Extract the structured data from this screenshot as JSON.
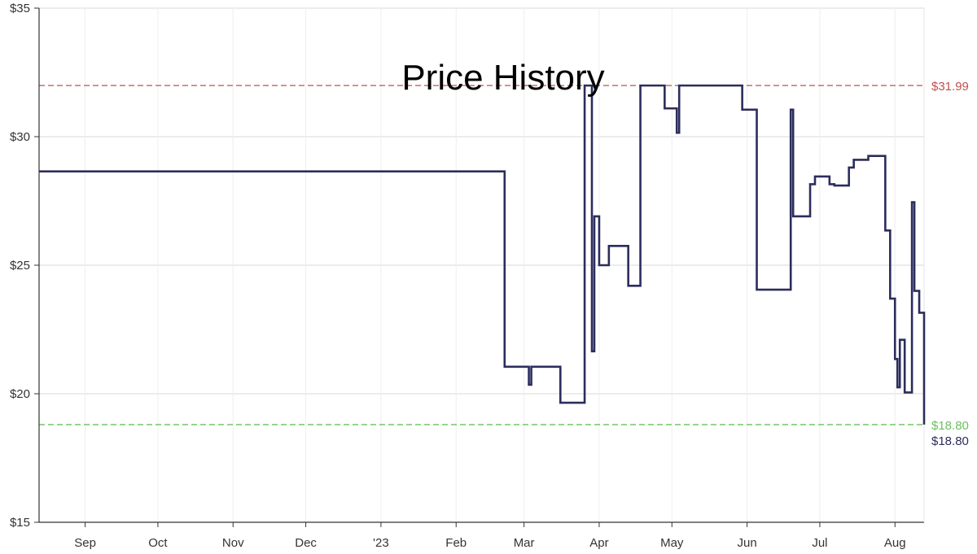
{
  "chart_data": {
    "type": "line",
    "title": "Price History",
    "xlabel": "",
    "ylabel": "",
    "y_ticks": [
      "$15",
      "$20",
      "$25",
      "$30",
      "$35"
    ],
    "y_tick_values": [
      15,
      20,
      25,
      30,
      35
    ],
    "ylim": [
      15,
      35
    ],
    "x_range": [
      "2022-08-13",
      "2023-08-13"
    ],
    "x_ticks": [
      {
        "label": "Sep",
        "date": "2022-09-01"
      },
      {
        "label": "Oct",
        "date": "2022-10-01"
      },
      {
        "label": "Nov",
        "date": "2022-11-01"
      },
      {
        "label": "Dec",
        "date": "2022-12-01"
      },
      {
        "label": "'23",
        "date": "2023-01-01"
      },
      {
        "label": "Feb",
        "date": "2023-02-01"
      },
      {
        "label": "Mar",
        "date": "2023-03-01"
      },
      {
        "label": "Apr",
        "date": "2023-04-01"
      },
      {
        "label": "May",
        "date": "2023-05-01"
      },
      {
        "label": "Jun",
        "date": "2023-06-01"
      },
      {
        "label": "Jul",
        "date": "2023-07-01"
      },
      {
        "label": "Aug",
        "date": "2023-08-01"
      }
    ],
    "grid": true,
    "series": [
      {
        "color": "#2b2d5c",
        "step": true,
        "points": [
          [
            "2022-08-13",
            28.65
          ],
          [
            "2023-02-21",
            21.05
          ],
          [
            "2023-03-03",
            20.35
          ],
          [
            "2023-03-04",
            21.05
          ],
          [
            "2023-03-16",
            19.65
          ],
          [
            "2023-03-26",
            31.99
          ],
          [
            "2023-03-29",
            21.65
          ],
          [
            "2023-03-30",
            26.9
          ],
          [
            "2023-04-01",
            25.0
          ],
          [
            "2023-04-05",
            25.75
          ],
          [
            "2023-04-13",
            24.2
          ],
          [
            "2023-04-18",
            31.99
          ],
          [
            "2023-04-28",
            31.1
          ],
          [
            "2023-05-03",
            30.15
          ],
          [
            "2023-05-04",
            31.99
          ],
          [
            "2023-05-30",
            31.05
          ],
          [
            "2023-06-05",
            24.05
          ],
          [
            "2023-06-19",
            31.05
          ],
          [
            "2023-06-20",
            26.9
          ],
          [
            "2023-06-27",
            28.15
          ],
          [
            "2023-06-29",
            28.45
          ],
          [
            "2023-07-05",
            28.15
          ],
          [
            "2023-07-07",
            28.1
          ],
          [
            "2023-07-13",
            28.8
          ],
          [
            "2023-07-15",
            29.1
          ],
          [
            "2023-07-21",
            29.25
          ],
          [
            "2023-07-28",
            26.35
          ],
          [
            "2023-07-30",
            23.7
          ],
          [
            "2023-08-01",
            21.35
          ],
          [
            "2023-08-02",
            20.25
          ],
          [
            "2023-08-03",
            22.1
          ],
          [
            "2023-08-05",
            20.05
          ],
          [
            "2023-08-08",
            27.45
          ],
          [
            "2023-08-09",
            24.0
          ],
          [
            "2023-08-11",
            23.15
          ],
          [
            "2023-08-13",
            18.8
          ]
        ]
      }
    ],
    "reference_lines": [
      {
        "value": 31.99,
        "label": "$31.99",
        "color": "#c0504d",
        "style": "dashed"
      },
      {
        "value": 18.8,
        "label": "$18.80",
        "color": "#6abf5e",
        "style": "dashed"
      }
    ],
    "current_label": {
      "value": 18.8,
      "label": "$18.80",
      "color": "#2b2d5c"
    }
  }
}
